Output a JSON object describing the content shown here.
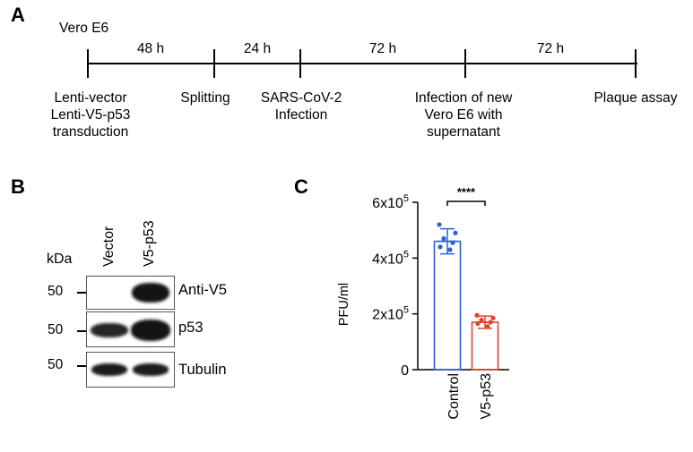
{
  "panel_a": {
    "letter": "A",
    "cell_line": "Vero E6",
    "intervals": [
      "48 h",
      "24 h",
      "72 h",
      "72 h"
    ],
    "steps": [
      {
        "lines": [
          "Lenti-vector",
          "Lenti-V5-p53",
          "transduction"
        ]
      },
      {
        "lines": [
          "Splitting"
        ]
      },
      {
        "lines": [
          "SARS-CoV-2",
          "Infection"
        ]
      },
      {
        "lines": [
          "Infection of new",
          "Vero E6 with",
          "supernatant"
        ]
      },
      {
        "lines": [
          "Plaque assay"
        ]
      }
    ]
  },
  "panel_b": {
    "letter": "B",
    "kda_label": "kDa",
    "lanes": [
      "Vector",
      "V5-p53"
    ],
    "blots": [
      {
        "marker": "50",
        "antibody": "Anti-V5",
        "band_intensity": [
          0.0,
          1.0
        ]
      },
      {
        "marker": "50",
        "antibody": "p53",
        "band_intensity": [
          0.85,
          1.0
        ]
      },
      {
        "marker": "50",
        "antibody": "Tubulin",
        "band_intensity": [
          1.0,
          1.0
        ]
      }
    ]
  },
  "panel_c": {
    "letter": "C",
    "significance": "****",
    "colors": {
      "control": "#2f5fd8",
      "v5_p53": "#e0442c"
    }
  },
  "chart_data": {
    "type": "bar",
    "categories": [
      "Control",
      "V5-p53"
    ],
    "values": [
      460000,
      170000
    ],
    "errors": [
      45000,
      22000
    ],
    "points": [
      [
        520000,
        490000,
        470000,
        455000,
        440000,
        430000
      ],
      [
        195000,
        185000,
        178000,
        170000,
        165000,
        155000
      ]
    ],
    "ylabel": "PFU/ml",
    "ylim": [
      0,
      600000
    ],
    "yticks": [
      {
        "value": 0,
        "base": "0",
        "exp": ""
      },
      {
        "value": 200000,
        "base": "2x10",
        "exp": "5"
      },
      {
        "value": 400000,
        "base": "4x10",
        "exp": "5"
      },
      {
        "value": 600000,
        "base": "6x10",
        "exp": "5"
      }
    ],
    "grid": false
  }
}
